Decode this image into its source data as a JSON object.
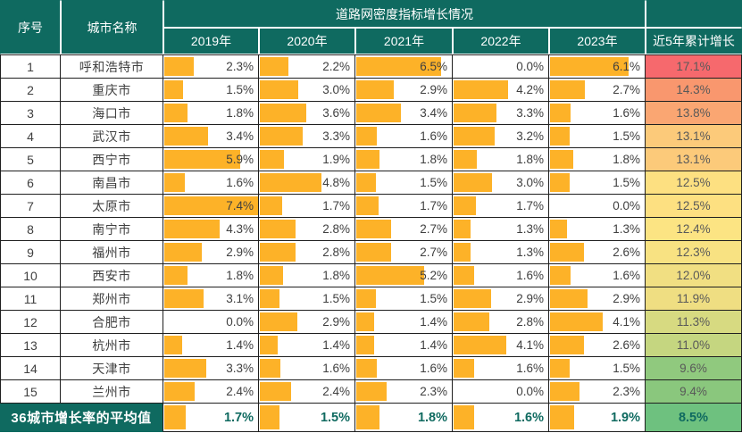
{
  "chart_data": {
    "type": "table",
    "title": "道路网密度指标增长情况",
    "columns": [
      "序号",
      "城市名称",
      "2019年",
      "2020年",
      "2021年",
      "2022年",
      "2023年",
      "近5年累计增长"
    ],
    "bar_scale_max": 7.4,
    "bar_color": "#FDB228",
    "header_bg": "#0F6A60",
    "value_format": "percent_one_decimal",
    "rows": [
      {
        "no": "1",
        "city": "呼和浩特市",
        "values": [
          2.3,
          2.2,
          6.5,
          0.0,
          6.1
        ],
        "cumulative": 17.1,
        "cum_color": "#F6696D"
      },
      {
        "no": "2",
        "city": "重庆市",
        "values": [
          1.5,
          3.0,
          2.9,
          4.2,
          2.7
        ],
        "cumulative": 14.3,
        "cum_color": "#F9976E"
      },
      {
        "no": "3",
        "city": "海口市",
        "values": [
          1.8,
          3.6,
          3.4,
          3.3,
          1.6
        ],
        "cumulative": 13.8,
        "cum_color": "#FAA672"
      },
      {
        "no": "4",
        "city": "武汉市",
        "values": [
          3.4,
          3.3,
          1.6,
          3.2,
          1.5
        ],
        "cumulative": 13.1,
        "cum_color": "#FCCA7A"
      },
      {
        "no": "5",
        "city": "西宁市",
        "values": [
          5.9,
          1.9,
          1.8,
          1.8,
          1.8
        ],
        "cumulative": 13.1,
        "cum_color": "#FCCA7A"
      },
      {
        "no": "6",
        "city": "南昌市",
        "values": [
          1.6,
          4.8,
          1.5,
          3.0,
          1.5
        ],
        "cumulative": 12.5,
        "cum_color": "#FDE081"
      },
      {
        "no": "7",
        "city": "太原市",
        "values": [
          7.4,
          1.7,
          1.7,
          1.7,
          0.0
        ],
        "cumulative": 12.5,
        "cum_color": "#FDE081"
      },
      {
        "no": "8",
        "city": "南宁市",
        "values": [
          4.3,
          2.8,
          2.7,
          1.3,
          1.3
        ],
        "cumulative": 12.4,
        "cum_color": "#FCE483"
      },
      {
        "no": "9",
        "city": "福州市",
        "values": [
          2.9,
          2.8,
          2.7,
          1.3,
          2.6
        ],
        "cumulative": 12.3,
        "cum_color": "#F8E282"
      },
      {
        "no": "10",
        "city": "西安市",
        "values": [
          1.8,
          1.8,
          5.2,
          1.6,
          1.6
        ],
        "cumulative": 12.0,
        "cum_color": "#F1DF82"
      },
      {
        "no": "11",
        "city": "郑州市",
        "values": [
          3.1,
          1.5,
          1.5,
          2.9,
          2.9
        ],
        "cumulative": 11.9,
        "cum_color": "#EFDE82"
      },
      {
        "no": "12",
        "city": "合肥市",
        "values": [
          0.0,
          2.9,
          1.4,
          2.8,
          4.1
        ],
        "cumulative": 11.3,
        "cum_color": "#D7DA81"
      },
      {
        "no": "13",
        "city": "杭州市",
        "values": [
          1.4,
          1.4,
          1.4,
          4.1,
          2.6
        ],
        "cumulative": 11.0,
        "cum_color": "#C5D680"
      },
      {
        "no": "14",
        "city": "天津市",
        "values": [
          3.3,
          1.6,
          1.6,
          1.6,
          1.5
        ],
        "cumulative": 9.6,
        "cum_color": "#90C97E"
      },
      {
        "no": "15",
        "city": "兰州市",
        "values": [
          2.4,
          2.4,
          2.3,
          0.0,
          2.3
        ],
        "cumulative": 9.4,
        "cum_color": "#8AC77D"
      }
    ],
    "average_row": {
      "label": "36城市增长率的平均值",
      "values": [
        1.7,
        1.5,
        1.8,
        1.6,
        1.9
      ],
      "cumulative": 8.5,
      "cum_color": "#6EC17F"
    }
  }
}
